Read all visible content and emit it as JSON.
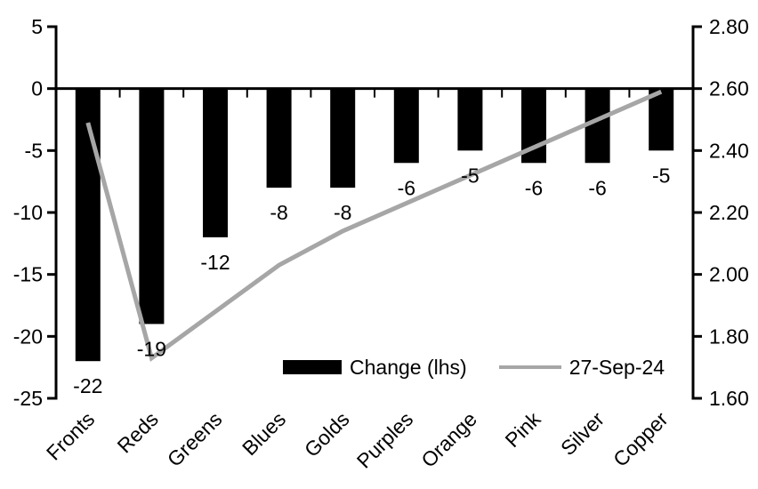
{
  "chart_data": {
    "type": "bar",
    "subtype": "combo-bar-line-dual-axis",
    "title": "",
    "categories": [
      "Fronts",
      "Reds",
      "Greens",
      "Blues",
      "Golds",
      "Purples",
      "Orange",
      "Pink",
      "Silver",
      "Copper"
    ],
    "series": [
      {
        "name": "Change (lhs)",
        "type": "bar",
        "axis": "left",
        "color": "#000000",
        "values": [
          -22,
          -19,
          -12,
          -8,
          -8,
          -6,
          -5,
          -6,
          -6,
          -5
        ],
        "data_labels": [
          "-22",
          "-19",
          "-12",
          "-8",
          "-8",
          "-6",
          "-5",
          "-6",
          "-6",
          "-5"
        ]
      },
      {
        "name": "27-Sep-24",
        "type": "line",
        "axis": "right",
        "color": "#a6a6a6",
        "values": [
          2.49,
          1.73,
          1.88,
          2.03,
          2.14,
          2.23,
          2.32,
          2.41,
          2.5,
          2.59
        ]
      }
    ],
    "left_axis": {
      "min": -25,
      "max": 5,
      "tick_labels": [
        "5",
        "0",
        "-5",
        "-10",
        "-15",
        "-20",
        "-25"
      ]
    },
    "right_axis": {
      "min": 1.6,
      "max": 2.8,
      "tick_labels": [
        "2.80",
        "2.60",
        "2.40",
        "2.20",
        "2.00",
        "1.80",
        "1.60"
      ]
    },
    "legend": {
      "position": "bottom-inside",
      "entries": [
        "Change (lhs)",
        "27-Sep-24"
      ]
    },
    "grid": false,
    "background": "#ffffff",
    "axis_color": "#000000"
  }
}
